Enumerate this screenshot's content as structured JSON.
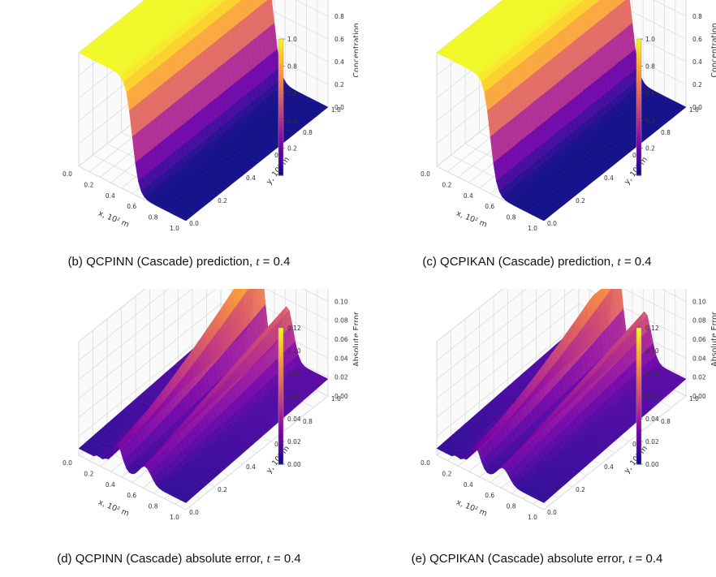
{
  "colormap": [
    "#0d0887",
    "#46039f",
    "#7201a8",
    "#9c179e",
    "#bd3786",
    "#d8576b",
    "#ed7953",
    "#fb9f3a",
    "#fdca26",
    "#f0f921"
  ],
  "panels": [
    {
      "caption_prefix": "(b) QCPINN (Cascade) prediction,",
      "caption_tvar": "t",
      "caption_tval": "= 0.4",
      "chart_data": {
        "type": "surface3d",
        "quantity": "concentration",
        "time": 0.4,
        "xlabel": "x, 10² m",
        "ylabel": "y, 10² m",
        "zlabel": "Concentration",
        "xticks": [
          "0.0",
          "0.2",
          "0.4",
          "0.6",
          "0.8",
          "1.0"
        ],
        "yticks": [
          "0.0",
          "0.2",
          "0.4",
          "0.6",
          "0.8",
          "1.0"
        ],
        "zticks": [
          "0.0",
          "0.2",
          "0.4",
          "0.6",
          "0.8",
          "1.0"
        ],
        "zlim": [
          0,
          1.0
        ],
        "colorbar_ticks": [
          "0.2",
          "0.4",
          "0.6",
          "0.8",
          "1.0"
        ],
        "colorbar_range": [
          0.0,
          1.0
        ],
        "surface": {
          "kind": "front",
          "center_x": 0.5,
          "width": 0.12,
          "plateau": 1.0
        }
      }
    },
    {
      "caption_prefix": "(c) QCPIKAN (Cascade) prediction,",
      "caption_tvar": "t",
      "caption_tval": "= 0.4",
      "chart_data": {
        "type": "surface3d",
        "quantity": "concentration",
        "time": 0.4,
        "xlabel": "x, 10² m",
        "ylabel": "y, 10² m",
        "zlabel": "Concentration",
        "xticks": [
          "0.0",
          "0.2",
          "0.4",
          "0.6",
          "0.8",
          "1.0"
        ],
        "yticks": [
          "0.0",
          "0.2",
          "0.4",
          "0.6",
          "0.8",
          "1.0"
        ],
        "zticks": [
          "0.0",
          "0.2",
          "0.4",
          "0.6",
          "0.8",
          "1.0"
        ],
        "zlim": [
          0,
          1.0
        ],
        "colorbar_ticks": [
          "0.2",
          "0.4",
          "0.6",
          "0.8",
          "1.0"
        ],
        "colorbar_range": [
          0.0,
          1.0
        ],
        "surface": {
          "kind": "front",
          "center_x": 0.5,
          "width": 0.12,
          "plateau": 1.0
        }
      }
    },
    {
      "caption_prefix": "(d) QCPINN (Cascade) absolute error,",
      "caption_tvar": "t",
      "caption_tval": "= 0.4",
      "chart_data": {
        "type": "surface3d",
        "quantity": "absolute error",
        "time": 0.4,
        "xlabel": "x, 10² m",
        "ylabel": "y, 10² m",
        "zlabel": "Absolute Error",
        "xticks": [
          "0.0",
          "0.2",
          "0.4",
          "0.6",
          "0.8",
          "1.0"
        ],
        "yticks": [
          "0.0",
          "0.2",
          "0.4",
          "0.6",
          "0.8",
          "1.0"
        ],
        "zticks": [
          "0.00",
          "0.02",
          "0.04",
          "0.06",
          "0.08",
          "0.10",
          "0.12"
        ],
        "zlim": [
          0,
          0.12
        ],
        "colorbar_ticks": [
          "0.00",
          "0.02",
          "0.04",
          "0.06",
          "0.08",
          "0.10",
          "0.12"
        ],
        "colorbar_range": [
          0.0,
          0.12
        ],
        "surface": {
          "kind": "error",
          "peak": 0.1,
          "base": 0.03
        }
      }
    },
    {
      "caption_prefix": "(e) QCPIKAN (Cascade) absolute error,",
      "caption_tvar": "t",
      "caption_tval": "= 0.4",
      "chart_data": {
        "type": "surface3d",
        "quantity": "absolute error",
        "time": 0.4,
        "xlabel": "x, 10² m",
        "ylabel": "y, 10² m",
        "zlabel": "Absolute Error",
        "xticks": [
          "0.0",
          "0.2",
          "0.4",
          "0.6",
          "0.8",
          "1.0"
        ],
        "yticks": [
          "0.0",
          "0.2",
          "0.4",
          "0.6",
          "0.8",
          "1.0"
        ],
        "zticks": [
          "0.00",
          "0.02",
          "0.04",
          "0.06",
          "0.08",
          "0.10",
          "0.12"
        ],
        "zlim": [
          0,
          0.12
        ],
        "colorbar_ticks": [
          "0.00",
          "0.02",
          "0.04",
          "0.06",
          "0.08",
          "0.10",
          "0.12"
        ],
        "colorbar_range": [
          0.0,
          0.12
        ],
        "surface": {
          "kind": "error",
          "peak": 0.09,
          "base": 0.03
        }
      }
    }
  ]
}
